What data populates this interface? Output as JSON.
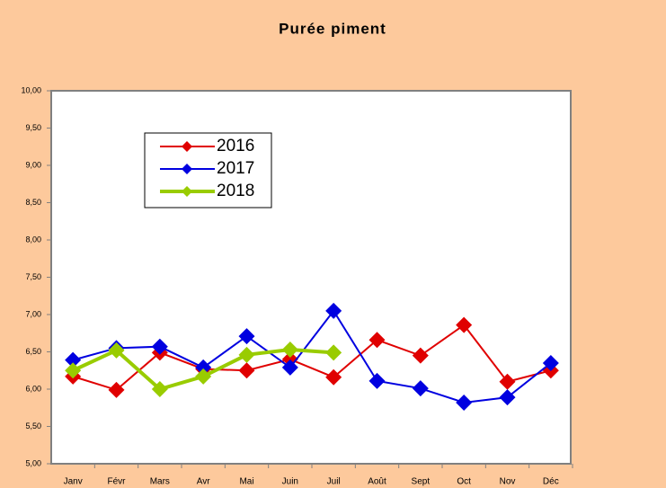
{
  "chart_data": {
    "type": "line",
    "title": "Purée piment",
    "categories": [
      "Janv",
      "Févr",
      "Mars",
      "Avr",
      "Mai",
      "Juin",
      "Juil",
      "Août",
      "Sept",
      "Oct",
      "Nov",
      "Déc"
    ],
    "series": [
      {
        "name": "2016",
        "color": "#e00000",
        "values": [
          6.17,
          5.99,
          6.49,
          6.27,
          6.25,
          6.4,
          6.16,
          6.66,
          6.45,
          6.86,
          6.1,
          6.25
        ]
      },
      {
        "name": "2017",
        "color": "#0000e0",
        "values": [
          6.39,
          6.55,
          6.57,
          6.29,
          6.71,
          6.29,
          7.05,
          6.11,
          6.01,
          5.82,
          5.89,
          6.35
        ]
      },
      {
        "name": "2018",
        "color": "#99cc00",
        "values": [
          6.25,
          6.52,
          6.0,
          6.17,
          6.46,
          6.53,
          6.49,
          null,
          null,
          null,
          null,
          null
        ]
      }
    ],
    "ylim": [
      5,
      10
    ],
    "yticks": [
      {
        "value": 5,
        "label": "5,00"
      },
      {
        "value": 5.5,
        "label": "5,50"
      },
      {
        "value": 6,
        "label": "6,00"
      },
      {
        "value": 6.5,
        "label": "6,50"
      },
      {
        "value": 7,
        "label": "7,00"
      },
      {
        "value": 7.5,
        "label": "7,50"
      },
      {
        "value": 8,
        "label": "8,00"
      },
      {
        "value": 8.5,
        "label": "8,50"
      },
      {
        "value": 9,
        "label": "9,00"
      },
      {
        "value": 9.5,
        "label": "9,50"
      },
      {
        "value": 10,
        "label": "10,00"
      }
    ],
    "grid": false,
    "legend": "top-left"
  }
}
